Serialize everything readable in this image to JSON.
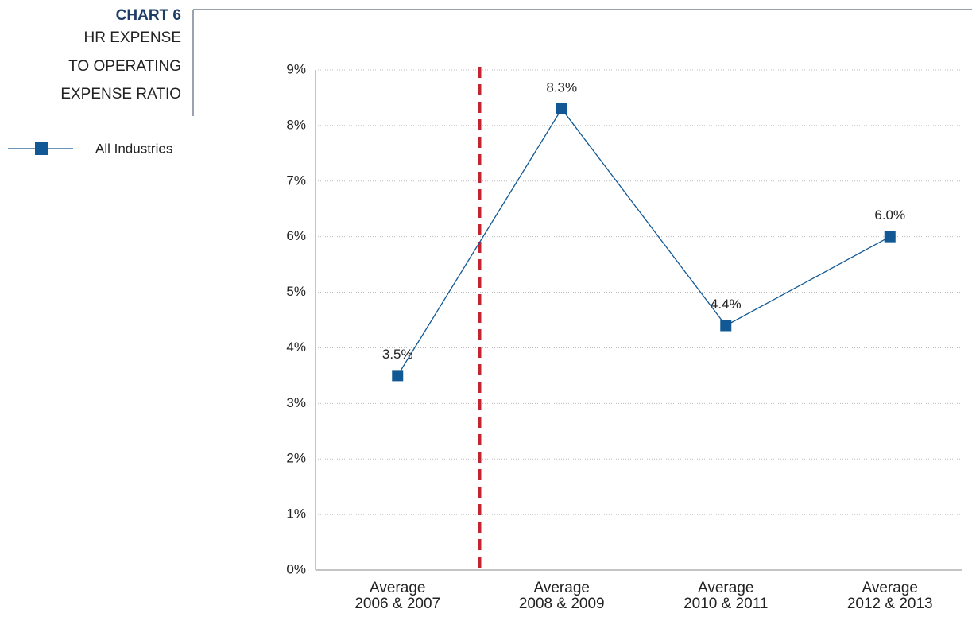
{
  "chart_data": {
    "type": "line",
    "title": "CHART 6",
    "subtitle": [
      "HR EXPENSE",
      "TO OPERATING",
      "EXPENSE RATIO"
    ],
    "categories": [
      "Average\n2006 & 2007",
      "Average\n2008 & 2009",
      "Average\n2010 & 2011",
      "Average\n2012 & 2013"
    ],
    "series": [
      {
        "name": "All Industries",
        "color": "#115894",
        "values": [
          3.5,
          8.3,
          4.4,
          6.0
        ],
        "value_labels": [
          "3.5%",
          "8.3%",
          "4.4%",
          "6.0%"
        ]
      }
    ],
    "ylim": [
      0,
      9
    ],
    "yticks": [
      {
        "value": 0,
        "label": "0%"
      },
      {
        "value": 1,
        "label": "1%"
      },
      {
        "value": 2,
        "label": "2%"
      },
      {
        "value": 3,
        "label": "3%"
      },
      {
        "value": 4,
        "label": "4%"
      },
      {
        "value": 5,
        "label": "5%"
      },
      {
        "value": 6,
        "label": "6%"
      },
      {
        "value": 7,
        "label": "7%"
      },
      {
        "value": 8,
        "label": "8%"
      },
      {
        "value": 9,
        "label": "9%"
      }
    ],
    "grid": true,
    "vline": {
      "x": 0.5,
      "color": "#c42330"
    }
  }
}
